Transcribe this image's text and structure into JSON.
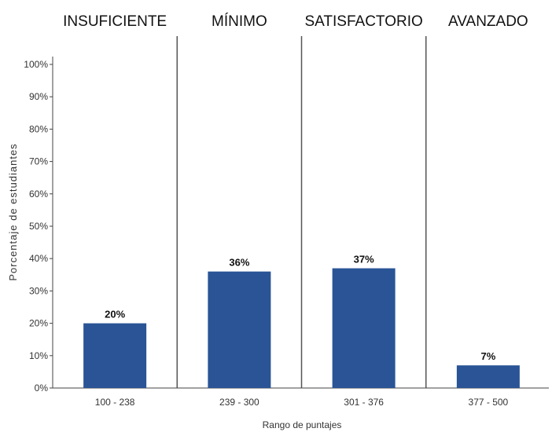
{
  "chart_data": {
    "type": "bar",
    "levels": [
      "INSUFICIENTE",
      "MÍNIMO",
      "SATISFACTORIO",
      "AVANZADO"
    ],
    "categories": [
      "100 - 238",
      "239 - 300",
      "301 - 376",
      "377 - 500"
    ],
    "values": [
      20,
      36,
      37,
      7
    ],
    "data_labels": [
      "20%",
      "36%",
      "37%",
      "7%"
    ],
    "xlabel": "Rango de puntajes",
    "ylabel": "Porcentaje de estudiantes",
    "ylim": [
      0,
      100
    ],
    "yticks": [
      0,
      10,
      20,
      30,
      40,
      50,
      60,
      70,
      80,
      90,
      100
    ],
    "ytick_labels": [
      "0%",
      "10%",
      "20%",
      "30%",
      "40%",
      "50%",
      "60%",
      "70%",
      "80%",
      "90%",
      "100%"
    ],
    "grid": false,
    "colors": {
      "bar": "#2a5496",
      "divider": "#555555",
      "axis": "#444444"
    }
  }
}
